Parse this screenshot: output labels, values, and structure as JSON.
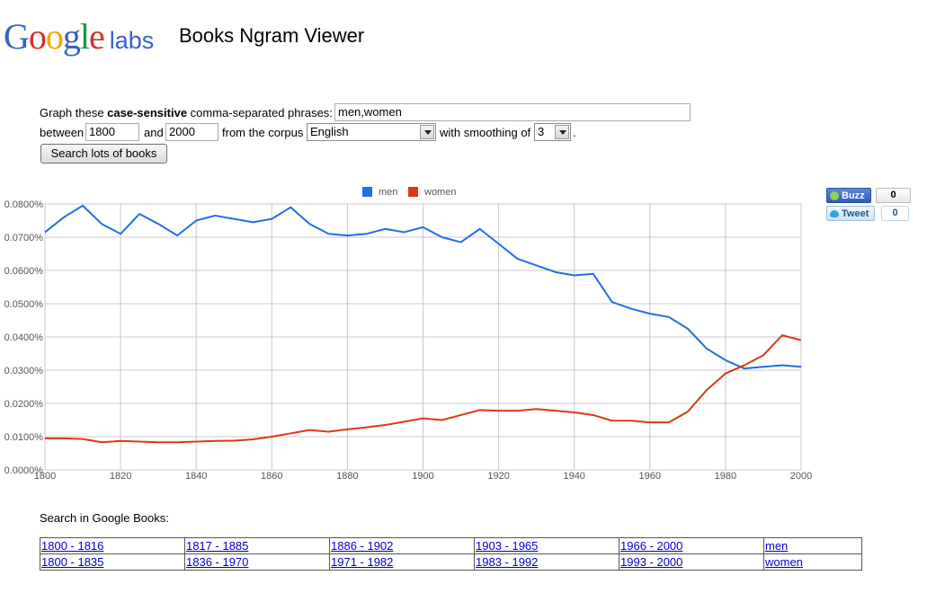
{
  "header": {
    "logo": {
      "google_letters": [
        "G",
        "o",
        "o",
        "g",
        "l",
        "e"
      ],
      "google_colors": [
        "#3464c4",
        "#d93025",
        "#f2a600",
        "#3464c4",
        "#149c3a",
        "#d93025"
      ],
      "labs": "labs"
    },
    "title": "Books Ngram Viewer"
  },
  "form": {
    "line1_prefix": "Graph these ",
    "line1_bold": "case-sensitive",
    "line1_suffix": " comma-separated phrases:",
    "phrases_value": "men,women",
    "between_label": "between",
    "start_year": "1800",
    "and_label": "and",
    "end_year": "2000",
    "corpus_label": "from the corpus",
    "corpus_value": "English",
    "smoothing_label": "with smoothing of",
    "smoothing_value": "3",
    "period": ".",
    "search_button": "Search lots of books"
  },
  "share": {
    "buzz_label": "Buzz",
    "buzz_count": "0",
    "tweet_label": "Tweet",
    "tweet_count": "0"
  },
  "chart_data": {
    "type": "line",
    "title": "",
    "xlabel": "",
    "ylabel": "",
    "x": [
      1800,
      1805,
      1810,
      1815,
      1820,
      1825,
      1830,
      1835,
      1840,
      1845,
      1850,
      1855,
      1860,
      1865,
      1870,
      1875,
      1880,
      1885,
      1890,
      1895,
      1900,
      1905,
      1910,
      1915,
      1920,
      1925,
      1930,
      1935,
      1940,
      1945,
      1950,
      1955,
      1960,
      1965,
      1970,
      1975,
      1980,
      1985,
      1990,
      1995,
      2000
    ],
    "series": [
      {
        "name": "men",
        "color": "#1f6fe6",
        "values": [
          0.0715,
          0.076,
          0.0795,
          0.074,
          0.071,
          0.077,
          0.074,
          0.0705,
          0.075,
          0.0765,
          0.0755,
          0.0745,
          0.0755,
          0.079,
          0.074,
          0.071,
          0.0705,
          0.071,
          0.0725,
          0.0715,
          0.073,
          0.07,
          0.0685,
          0.0725,
          0.068,
          0.0635,
          0.0615,
          0.0595,
          0.0585,
          0.059,
          0.0505,
          0.0485,
          0.047,
          0.046,
          0.0425,
          0.0365,
          0.033,
          0.0305,
          0.031,
          0.0315,
          0.031
        ]
      },
      {
        "name": "women",
        "color": "#dc3912",
        "values": [
          0.0095,
          0.0095,
          0.0093,
          0.0083,
          0.0087,
          0.0085,
          0.0083,
          0.0083,
          0.0085,
          0.0087,
          0.0088,
          0.0092,
          0.01,
          0.011,
          0.012,
          0.0115,
          0.0122,
          0.0128,
          0.0135,
          0.0145,
          0.0155,
          0.015,
          0.0165,
          0.018,
          0.0178,
          0.0178,
          0.0183,
          0.0178,
          0.0173,
          0.0165,
          0.0148,
          0.0148,
          0.0143,
          0.0143,
          0.0175,
          0.024,
          0.029,
          0.0315,
          0.0345,
          0.0405,
          0.039
        ]
      }
    ],
    "xlim": [
      1800,
      2000
    ],
    "ylim": [
      0,
      0.08
    ],
    "x_ticks": [
      1800,
      1820,
      1840,
      1860,
      1880,
      1900,
      1920,
      1940,
      1960,
      1980,
      2000
    ],
    "y_ticks": [
      "0.0000%",
      "0.0100%",
      "0.0200%",
      "0.0300%",
      "0.0400%",
      "0.0500%",
      "0.0600%",
      "0.0700%",
      "0.0800%"
    ],
    "legend": [
      "men",
      "women"
    ],
    "legend_position": "top-center",
    "grid": true
  },
  "links": {
    "label": "Search in Google Books:",
    "rows": [
      {
        "ranges": [
          "1800 - 1816",
          "1817 - 1885",
          "1886 - 1902",
          "1903 - 1965",
          "1966 - 2000"
        ],
        "term": "men"
      },
      {
        "ranges": [
          "1800 - 1835",
          "1836 - 1970",
          "1971 - 1982",
          "1983 - 1992",
          "1993 - 2000"
        ],
        "term": "women"
      }
    ]
  }
}
